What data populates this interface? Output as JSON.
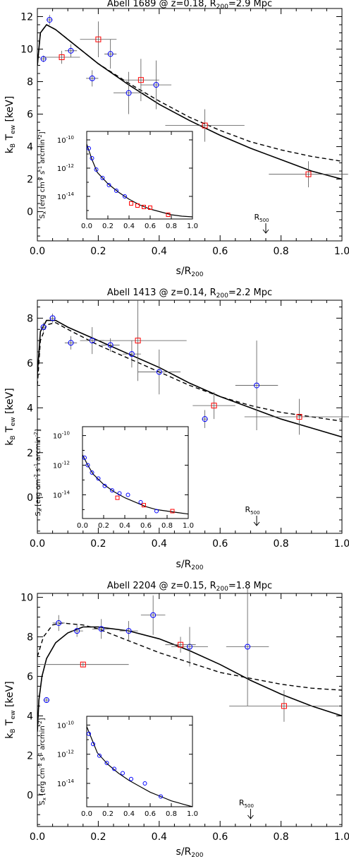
{
  "charts": [
    {
      "title": "Abell 1689 @ z=0.18, R",
      "title_sub": "200",
      "title_tail": "=2.9 Mpc",
      "r500": 0.75,
      "ylim": [
        -1.8,
        12.5
      ],
      "yticks": [
        0,
        2,
        4,
        6,
        8,
        10,
        12
      ],
      "blue": [
        {
          "x": 0.02,
          "y": 9.4,
          "xe": 0.01,
          "ye": 0.2
        },
        {
          "x": 0.04,
          "y": 11.8,
          "xe": 0.01,
          "ye": 0.3
        },
        {
          "x": 0.11,
          "y": 9.9,
          "xe": 0.02,
          "ye": 0.4
        },
        {
          "x": 0.18,
          "y": 8.2,
          "xe": 0.02,
          "ye": 0.5
        },
        {
          "x": 0.24,
          "y": 9.7,
          "xe": 0.02,
          "ye": 0.9
        },
        {
          "x": 0.3,
          "y": 7.3,
          "xe": 0.05,
          "ye": 1.3
        },
        {
          "x": 0.39,
          "y": 7.8,
          "xe": 0.05,
          "ye": 1.5
        }
      ],
      "red": [
        {
          "x": 0.08,
          "y": 9.5,
          "xe": 0.06,
          "ye": 0.4
        },
        {
          "x": 0.2,
          "y": 10.6,
          "xe": 0.06,
          "ye": 1.1
        },
        {
          "x": 0.34,
          "y": 8.1,
          "xe": 0.06,
          "ye": 1.3
        },
        {
          "x": 0.55,
          "y": 5.3,
          "xe": 0.13,
          "ye": 1.0
        },
        {
          "x": 0.89,
          "y": 2.3,
          "xe": 0.13,
          "ye": 0.8
        }
      ],
      "solid": [
        [
          0.0,
          9.0
        ],
        [
          0.01,
          11.0
        ],
        [
          0.03,
          11.5
        ],
        [
          0.06,
          11.2
        ],
        [
          0.1,
          10.6
        ],
        [
          0.2,
          9.1
        ],
        [
          0.3,
          7.8
        ],
        [
          0.4,
          6.6
        ],
        [
          0.5,
          5.6
        ],
        [
          0.6,
          4.7
        ],
        [
          0.7,
          3.9
        ],
        [
          0.8,
          3.2
        ],
        [
          0.9,
          2.5
        ],
        [
          1.0,
          2.0
        ]
      ],
      "dashed": [
        [
          0.0,
          9.0
        ],
        [
          0.01,
          11.0
        ],
        [
          0.03,
          11.5
        ],
        [
          0.06,
          11.2
        ],
        [
          0.1,
          10.6
        ],
        [
          0.2,
          9.1
        ],
        [
          0.3,
          7.9
        ],
        [
          0.4,
          6.8
        ],
        [
          0.5,
          5.8
        ],
        [
          0.6,
          5.0
        ],
        [
          0.7,
          4.3
        ],
        [
          0.8,
          3.8
        ],
        [
          0.9,
          3.4
        ],
        [
          1.0,
          3.1
        ]
      ],
      "inset": {
        "curve": [
          [
            0.0,
            -10.3
          ],
          [
            0.05,
            -11.4
          ],
          [
            0.1,
            -12.3
          ],
          [
            0.2,
            -13.1
          ],
          [
            0.3,
            -13.7
          ],
          [
            0.4,
            -14.2
          ],
          [
            0.5,
            -14.6
          ],
          [
            0.6,
            -14.9
          ],
          [
            0.7,
            -15.1
          ],
          [
            0.8,
            -15.3
          ],
          [
            0.9,
            -15.4
          ],
          [
            1.0,
            -15.45
          ]
        ],
        "blue": [
          [
            0.02,
            -10.6
          ],
          [
            0.05,
            -11.3
          ],
          [
            0.09,
            -12.1
          ],
          [
            0.15,
            -12.7
          ],
          [
            0.21,
            -13.2
          ],
          [
            0.28,
            -13.6
          ],
          [
            0.36,
            -14.0
          ]
        ],
        "red": [
          [
            0.42,
            -14.5
          ],
          [
            0.48,
            -14.65
          ],
          [
            0.54,
            -14.75
          ],
          [
            0.6,
            -14.8
          ],
          [
            0.77,
            -15.3
          ]
        ]
      }
    },
    {
      "title": "Abell 1413 @ z=0.14, R",
      "title_sub": "200",
      "title_tail": "=2.2 Mpc",
      "r500": 0.72,
      "ylim": [
        -1.6,
        8.8
      ],
      "yticks": [
        0,
        2,
        4,
        6,
        8
      ],
      "blue": [
        {
          "x": 0.02,
          "y": 7.6,
          "xe": 0.01,
          "ye": 0.2
        },
        {
          "x": 0.05,
          "y": 8.0,
          "xe": 0.01,
          "ye": 0.2
        },
        {
          "x": 0.11,
          "y": 6.9,
          "xe": 0.02,
          "ye": 0.3
        },
        {
          "x": 0.18,
          "y": 7.0,
          "xe": 0.04,
          "ye": 0.6
        },
        {
          "x": 0.24,
          "y": 6.8,
          "xe": 0.03,
          "ye": 0.3
        },
        {
          "x": 0.31,
          "y": 6.4,
          "xe": 0.03,
          "ye": 0.6
        },
        {
          "x": 0.4,
          "y": 5.6,
          "xe": 0.07,
          "ye": 1.0
        },
        {
          "x": 0.55,
          "y": 3.5,
          "xe": 0.01,
          "ye": 0.4
        },
        {
          "x": 0.72,
          "y": 5.0,
          "xe": 0.07,
          "ye": 2.0
        }
      ],
      "red": [
        {
          "x": 0.33,
          "y": 7.0,
          "xe": 0.16,
          "ye": 1.8
        },
        {
          "x": 0.58,
          "y": 4.1,
          "xe": 0.07,
          "ye": 0.6
        },
        {
          "x": 0.86,
          "y": 3.6,
          "xe": 0.18,
          "ye": 0.8
        }
      ],
      "solid": [
        [
          0.0,
          5.5
        ],
        [
          0.01,
          7.4
        ],
        [
          0.03,
          7.9
        ],
        [
          0.06,
          7.9
        ],
        [
          0.1,
          7.6
        ],
        [
          0.2,
          7.0
        ],
        [
          0.3,
          6.4
        ],
        [
          0.4,
          5.8
        ],
        [
          0.5,
          5.1
        ],
        [
          0.6,
          4.5
        ],
        [
          0.7,
          4.0
        ],
        [
          0.8,
          3.5
        ],
        [
          0.9,
          3.1
        ],
        [
          1.0,
          2.7
        ]
      ],
      "dashed": [
        [
          0.0,
          5.0
        ],
        [
          0.01,
          7.0
        ],
        [
          0.03,
          7.7
        ],
        [
          0.06,
          7.8
        ],
        [
          0.1,
          7.5
        ],
        [
          0.2,
          6.8
        ],
        [
          0.3,
          6.2
        ],
        [
          0.4,
          5.6
        ],
        [
          0.5,
          5.0
        ],
        [
          0.6,
          4.5
        ],
        [
          0.7,
          4.1
        ],
        [
          0.8,
          3.8
        ],
        [
          0.9,
          3.6
        ],
        [
          1.0,
          3.4
        ]
      ],
      "inset": {
        "curve": [
          [
            0.0,
            -11.3
          ],
          [
            0.05,
            -12.0
          ],
          [
            0.1,
            -12.6
          ],
          [
            0.2,
            -13.3
          ],
          [
            0.3,
            -13.8
          ],
          [
            0.4,
            -14.2
          ],
          [
            0.5,
            -14.5
          ],
          [
            0.6,
            -14.8
          ],
          [
            0.7,
            -15.0
          ],
          [
            0.8,
            -15.1
          ],
          [
            0.9,
            -15.2
          ],
          [
            1.0,
            -15.3
          ]
        ],
        "blue": [
          [
            0.02,
            -11.5
          ],
          [
            0.05,
            -12.0
          ],
          [
            0.09,
            -12.5
          ],
          [
            0.15,
            -12.9
          ],
          [
            0.21,
            -13.4
          ],
          [
            0.28,
            -13.7
          ],
          [
            0.35,
            -13.9
          ],
          [
            0.43,
            -14.0
          ],
          [
            0.55,
            -14.5
          ],
          [
            0.7,
            -15.1
          ]
        ],
        "red": [
          [
            0.33,
            -14.2
          ],
          [
            0.58,
            -14.7
          ],
          [
            0.85,
            -15.1
          ]
        ]
      }
    },
    {
      "title": "Abell 2204 @ z=0.15, R",
      "title_sub": "200",
      "title_tail": "=1.8 Mpc",
      "r500": 0.7,
      "ylim": [
        -1.6,
        10.2
      ],
      "yticks": [
        0,
        2,
        4,
        6,
        8,
        10
      ],
      "blue": [
        {
          "x": 0.03,
          "y": 4.8,
          "xe": 0.01,
          "ye": 0.1
        },
        {
          "x": 0.07,
          "y": 8.7,
          "xe": 0.02,
          "ye": 0.4
        },
        {
          "x": 0.13,
          "y": 8.3,
          "xe": 0.02,
          "ye": 0.3
        },
        {
          "x": 0.21,
          "y": 8.4,
          "xe": 0.03,
          "ye": 0.5
        },
        {
          "x": 0.3,
          "y": 8.3,
          "xe": 0.03,
          "ye": 0.5
        },
        {
          "x": 0.38,
          "y": 9.1,
          "xe": 0.04,
          "ye": 1.0
        },
        {
          "x": 0.5,
          "y": 7.5,
          "xe": 0.06,
          "ye": 1.0
        },
        {
          "x": 0.69,
          "y": 7.5,
          "xe": 0.07,
          "ye": 3.0
        }
      ],
      "red": [
        {
          "x": 0.15,
          "y": 6.6,
          "xe": 0.15,
          "ye": 0.1
        },
        {
          "x": 0.47,
          "y": 7.6,
          "xe": 0.05,
          "ye": 0.4
        },
        {
          "x": 0.81,
          "y": 4.5,
          "xe": 0.18,
          "ye": 0.8
        }
      ],
      "solid": [
        [
          0.0,
          3.2
        ],
        [
          0.005,
          4.8
        ],
        [
          0.015,
          6.0
        ],
        [
          0.03,
          6.9
        ],
        [
          0.06,
          7.7
        ],
        [
          0.1,
          8.2
        ],
        [
          0.15,
          8.5
        ],
        [
          0.2,
          8.5
        ],
        [
          0.3,
          8.3
        ],
        [
          0.4,
          7.9
        ],
        [
          0.5,
          7.3
        ],
        [
          0.6,
          6.6
        ],
        [
          0.7,
          5.8
        ],
        [
          0.8,
          5.1
        ],
        [
          0.9,
          4.5
        ],
        [
          1.0,
          4.0
        ]
      ],
      "dashed": [
        [
          0.0,
          7.0
        ],
        [
          0.02,
          8.0
        ],
        [
          0.05,
          8.6
        ],
        [
          0.08,
          8.7
        ],
        [
          0.15,
          8.6
        ],
        [
          0.2,
          8.4
        ],
        [
          0.3,
          7.8
        ],
        [
          0.4,
          7.2
        ],
        [
          0.5,
          6.7
        ],
        [
          0.6,
          6.2
        ],
        [
          0.7,
          5.9
        ],
        [
          0.8,
          5.6
        ],
        [
          0.9,
          5.4
        ],
        [
          1.0,
          5.3
        ]
      ],
      "inset": {
        "curve": [
          [
            0.0,
            -10.1
          ],
          [
            0.05,
            -11.0
          ],
          [
            0.1,
            -11.9
          ],
          [
            0.2,
            -12.7
          ],
          [
            0.3,
            -13.3
          ],
          [
            0.4,
            -13.8
          ],
          [
            0.5,
            -14.2
          ],
          [
            0.6,
            -14.6
          ],
          [
            0.7,
            -14.9
          ],
          [
            0.8,
            -15.2
          ],
          [
            0.9,
            -15.4
          ],
          [
            1.0,
            -15.6
          ]
        ],
        "blue": [
          [
            0.02,
            -10.6
          ],
          [
            0.06,
            -11.3
          ],
          [
            0.12,
            -12.1
          ],
          [
            0.19,
            -12.6
          ],
          [
            0.26,
            -13.0
          ],
          [
            0.34,
            -13.3
          ],
          [
            0.42,
            -13.7
          ],
          [
            0.55,
            -14.0
          ],
          [
            0.7,
            -14.9
          ]
        ],
        "red": []
      }
    }
  ],
  "xticks": [
    0.0,
    0.2,
    0.4,
    0.6,
    0.8,
    1.0
  ],
  "xtick_labels": [
    "0.0",
    "0.2",
    "0.4",
    "0.6",
    "0.8",
    "1.0"
  ],
  "inset_xtick_labels": [
    "0.0",
    "0.2",
    "0.4",
    "0.6",
    "0.8",
    "1.0"
  ],
  "inset_ylim": [
    -15.6,
    -9.4
  ],
  "inset_yticks": [
    -10,
    -12,
    -14
  ],
  "inset_ytick_labels": [
    "10",
    "10",
    "10"
  ],
  "inset_ytick_exps": [
    "-10",
    "-12",
    "-14"
  ],
  "xlabel": "s/R",
  "xlabel_sub": "200",
  "ylabel": "k",
  "ylabel_sub_b": "B",
  "ylabel_mid": " T",
  "ylabel_sub_ew": "ew",
  "ylabel_tail": " [keV]",
  "inset_ylabel": "S",
  "inset_ylabel_sub": "x",
  "inset_ylabel_tail": " [erg cm",
  "inset_ylabel_e1": "-2",
  "inset_ylabel_s": " s",
  "inset_ylabel_e2": "-1",
  "inset_ylabel_arc": " arcmin",
  "inset_ylabel_e3": "-2",
  "inset_ylabel_end": "]",
  "r500_label": "R",
  "r500_sub": "500",
  "colors": {
    "blue": "#0000ff",
    "red": "#ff0000",
    "axis": "#000000",
    "errorbar": "#555555"
  },
  "chart_data": [
    {
      "type": "scatter",
      "title": "Abell 1689 @ z=0.18, R200=2.9 Mpc",
      "xlabel": "s/R200",
      "ylabel": "kB Tew [keV]",
      "xlim": [
        0,
        1
      ],
      "ylim": [
        -1.8,
        12.5
      ]
    },
    {
      "type": "scatter",
      "title": "Abell 1413 @ z=0.14, R200=2.2 Mpc",
      "xlabel": "s/R200",
      "ylabel": "kB Tew [keV]",
      "xlim": [
        0,
        1
      ],
      "ylim": [
        -1.6,
        8.8
      ]
    },
    {
      "type": "scatter",
      "title": "Abell 2204 @ z=0.15, R200=1.8 Mpc",
      "xlabel": "s/R200",
      "ylabel": "kB Tew [keV]",
      "xlim": [
        0,
        1
      ],
      "ylim": [
        -1.6,
        10.2
      ]
    }
  ]
}
